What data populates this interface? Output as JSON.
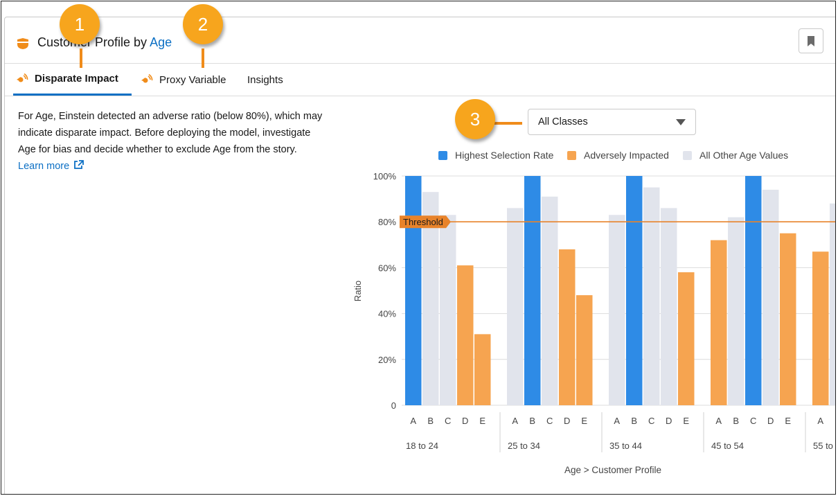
{
  "header": {
    "title_prefix": "Customer Profile by ",
    "title_link": "Age"
  },
  "tabs": [
    {
      "label": "Disparate Impact",
      "active": true,
      "icon": "alert-speaker-icon"
    },
    {
      "label": "Proxy Variable",
      "active": false,
      "icon": "alert-speaker-icon"
    },
    {
      "label": "Insights",
      "active": false,
      "icon": ""
    }
  ],
  "description": {
    "text": "For Age, Einstein detected an adverse ratio (below 80%), which may indicate disparate impact. Before deploying the model, investigate Age for bias and decide whether to exclude Age from the story.",
    "link": "Learn more"
  },
  "filter": {
    "selected": "All Classes"
  },
  "callouts": [
    "1",
    "2",
    "3"
  ],
  "colors": {
    "highest": "#2e8be6",
    "adverse": "#f6a450",
    "other": "#e1e4ec",
    "threshold": "#e8832a",
    "accent": "#0b6fc4"
  },
  "chart_data": {
    "type": "bar",
    "legend": [
      {
        "key": "highest",
        "label": "Highest Selection Rate"
      },
      {
        "key": "adverse",
        "label": "Adversely Impacted"
      },
      {
        "key": "other",
        "label": "All Other Age Values"
      }
    ],
    "ylabel": "Ratio",
    "xlabel": "Age > Customer Profile",
    "yticks": [
      "0",
      "20%",
      "40%",
      "60%",
      "80%",
      "100%"
    ],
    "ylim": [
      0,
      100
    ],
    "threshold": {
      "value": 80,
      "label": "Threshold"
    },
    "groups": [
      {
        "label": "18 to 24",
        "bars": [
          {
            "sub": "A",
            "value": 100,
            "kind": "highest"
          },
          {
            "sub": "B",
            "value": 93,
            "kind": "other"
          },
          {
            "sub": "C",
            "value": 83,
            "kind": "other"
          },
          {
            "sub": "D",
            "value": 61,
            "kind": "adverse"
          },
          {
            "sub": "E",
            "value": 31,
            "kind": "adverse"
          }
        ]
      },
      {
        "label": "25 to 34",
        "bars": [
          {
            "sub": "A",
            "value": 86,
            "kind": "other"
          },
          {
            "sub": "B",
            "value": 100,
            "kind": "highest"
          },
          {
            "sub": "C",
            "value": 91,
            "kind": "other"
          },
          {
            "sub": "D",
            "value": 68,
            "kind": "adverse"
          },
          {
            "sub": "E",
            "value": 48,
            "kind": "adverse"
          }
        ]
      },
      {
        "label": "35 to 44",
        "bars": [
          {
            "sub": "A",
            "value": 83,
            "kind": "other"
          },
          {
            "sub": "B",
            "value": 100,
            "kind": "highest"
          },
          {
            "sub": "C",
            "value": 95,
            "kind": "other"
          },
          {
            "sub": "D",
            "value": 86,
            "kind": "other"
          },
          {
            "sub": "E",
            "value": 58,
            "kind": "adverse"
          }
        ]
      },
      {
        "label": "45 to 54",
        "bars": [
          {
            "sub": "A",
            "value": 72,
            "kind": "adverse"
          },
          {
            "sub": "B",
            "value": 82,
            "kind": "other"
          },
          {
            "sub": "C",
            "value": 100,
            "kind": "highest"
          },
          {
            "sub": "D",
            "value": 94,
            "kind": "other"
          },
          {
            "sub": "E",
            "value": 75,
            "kind": "adverse"
          }
        ]
      },
      {
        "label": "55 to",
        "bars": [
          {
            "sub": "A",
            "value": 67,
            "kind": "adverse"
          },
          {
            "sub": "",
            "value": 88,
            "kind": "other"
          }
        ]
      }
    ]
  }
}
